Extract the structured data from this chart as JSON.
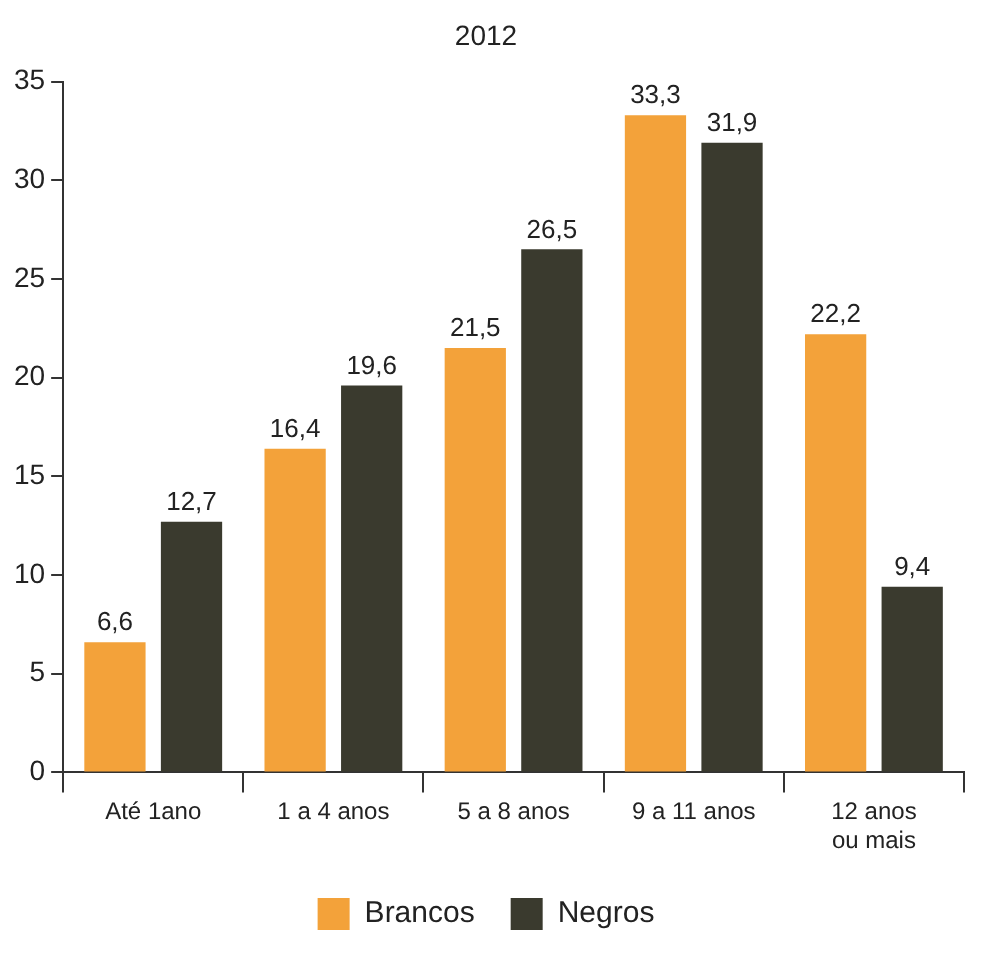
{
  "chart_data": {
    "type": "bar",
    "title": "2012",
    "categories": [
      "Até 1ano",
      "1 a 4 anos",
      "5 a 8 anos",
      "9 a 11 anos",
      "12 anos ou mais"
    ],
    "series": [
      {
        "name": "Brancos",
        "color": "#f3a23a",
        "values": [
          6.6,
          16.4,
          21.5,
          33.3,
          22.2
        ],
        "value_labels": [
          "6,6",
          "16,4",
          "21,5",
          "33,3",
          "22,2"
        ]
      },
      {
        "name": "Negros",
        "color": "#3a3a2e",
        "values": [
          12.7,
          19.6,
          26.5,
          31.9,
          9.4
        ],
        "value_labels": [
          "12,7",
          "19,6",
          "26,5",
          "31,9",
          "9,4"
        ]
      }
    ],
    "ylim": [
      0,
      35
    ],
    "yticks": [
      0,
      5,
      10,
      15,
      20,
      25,
      30,
      35
    ],
    "grid": false,
    "legend": "bottom"
  }
}
